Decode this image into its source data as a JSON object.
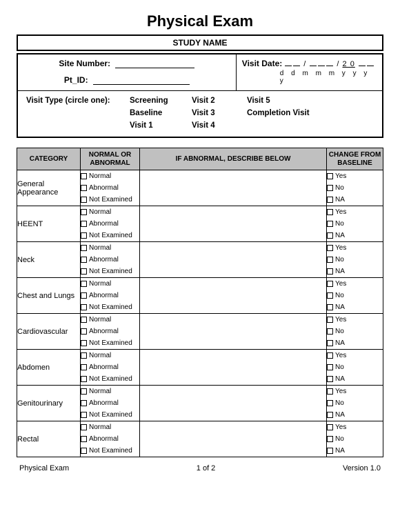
{
  "title": "Physical Exam",
  "study_name": "STUDY NAME",
  "header": {
    "site_number_label": "Site Number:",
    "ptid_label": "Pt_ID:",
    "visit_date_label": "Visit Date:",
    "date_fixed": "2 0",
    "date_legend": "d  d   m m m  y  y  y  y"
  },
  "visit_type": {
    "label": "Visit Type (circle one):",
    "opts": [
      "Screening",
      "Baseline",
      "Visit 1",
      "Visit 2",
      "Visit 3",
      "Visit 4",
      "Visit 5",
      "Completion Visit"
    ]
  },
  "table": {
    "headers": {
      "category": "CATEGORY",
      "normal": "NORMAL OR ABNORMAL",
      "describe": "IF ABNORMAL, DESCRIBE BELOW",
      "change": "CHANGE FROM BASELINE"
    },
    "normal_opts": [
      "Normal",
      "Abnormal",
      "Not Examined"
    ],
    "change_opts": [
      "Yes",
      "No",
      "NA"
    ],
    "categories": [
      "General Appearance",
      "HEENT",
      "Neck",
      "Chest and Lungs",
      "Cardiovascular",
      "Abdomen",
      "Genitourinary",
      "Rectal"
    ]
  },
  "footer": {
    "left": "Physical Exam",
    "center": "1 of  2",
    "right": "Version 1.0"
  }
}
